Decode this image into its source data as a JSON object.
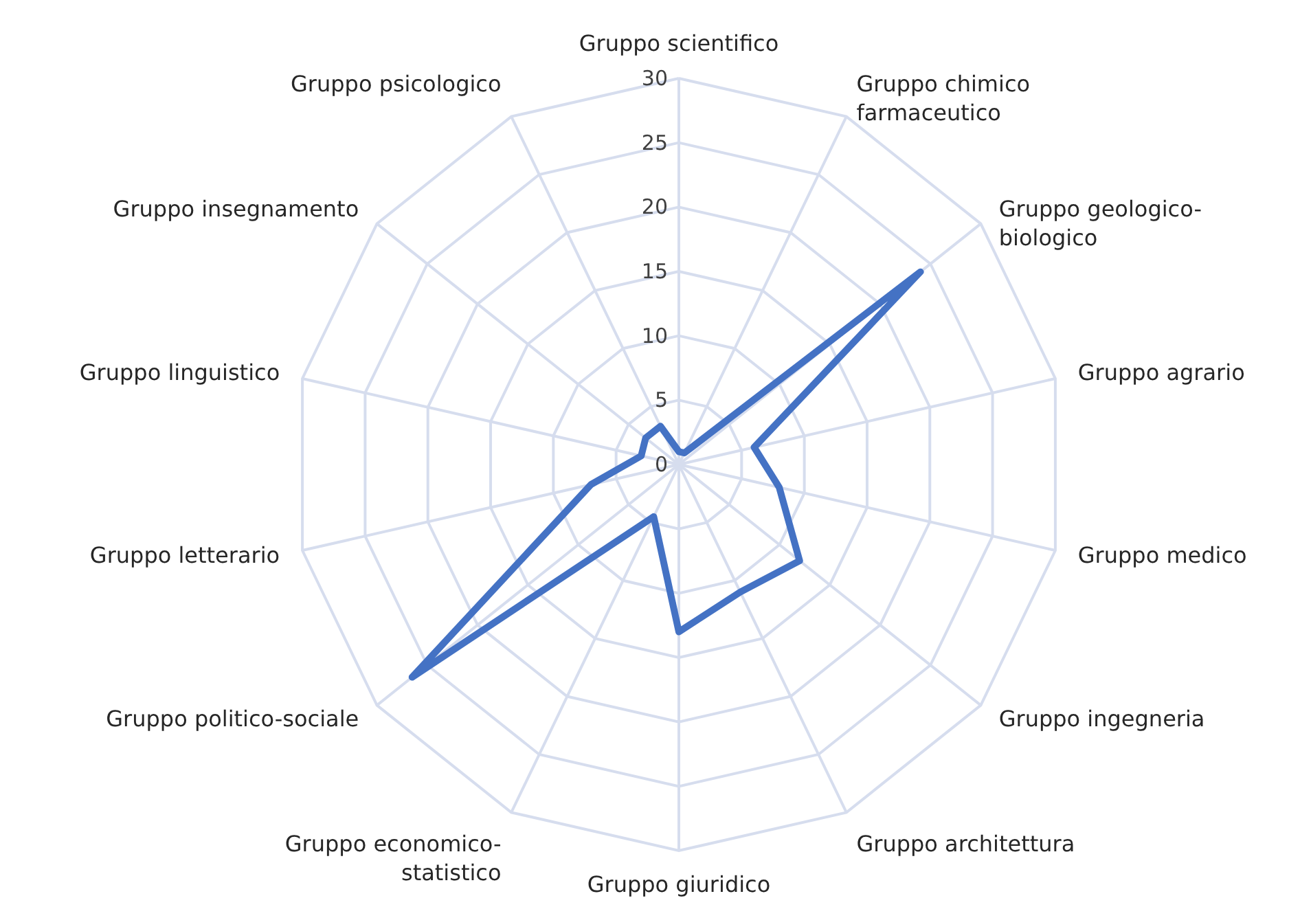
{
  "chart_data": {
    "type": "radar",
    "categories": [
      "Gruppo scientifico",
      "Gruppo chimico farmaceutico",
      "Gruppo geologico-biologico",
      "Gruppo agrario",
      "Gruppo medico",
      "Gruppo ingegneria",
      "Gruppo architettura",
      "Gruppo giuridico",
      "Gruppo economico-statistico",
      "Gruppo politico-sociale",
      "Gruppo letterario",
      "Gruppo linguistico",
      "Gruppo insegnamento",
      "Gruppo psicologico"
    ],
    "series": [
      {
        "color": "#4472c4",
        "values": [
          1,
          1,
          24,
          6,
          8,
          12,
          11,
          13,
          4.5,
          26.5,
          7,
          3,
          3.3,
          3.3
        ]
      }
    ],
    "ylim": [
      0,
      30
    ],
    "yticks": [
      0,
      5,
      10,
      15,
      20,
      25,
      30
    ],
    "grid": true
  }
}
